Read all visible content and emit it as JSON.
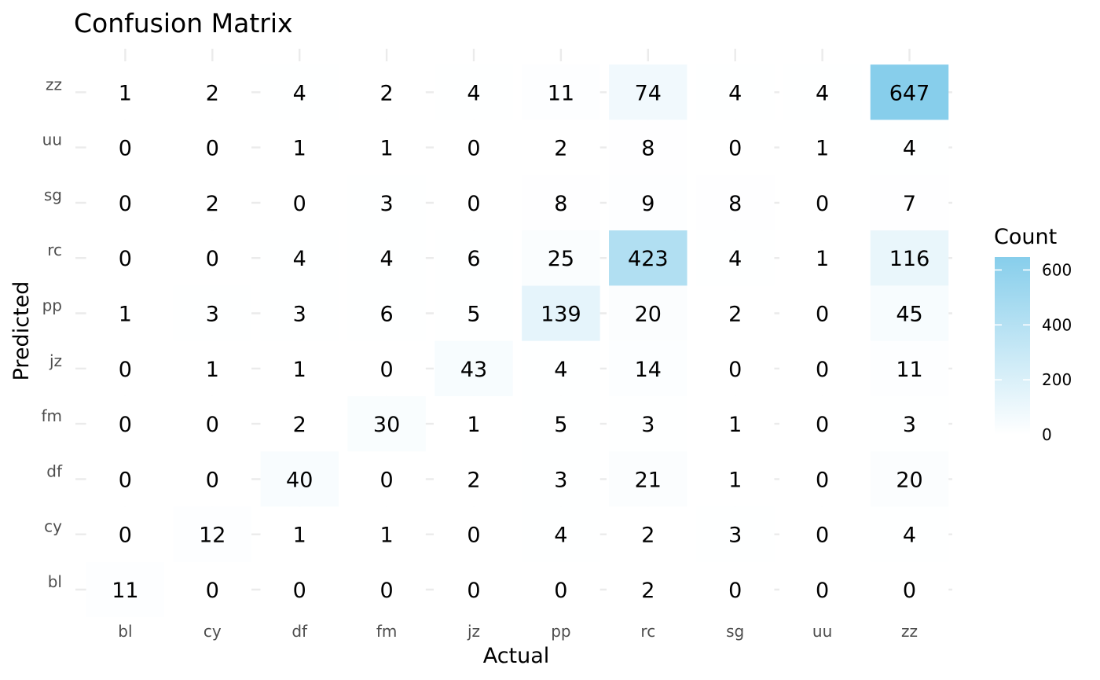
{
  "chart_data": {
    "type": "heatmap",
    "title": "Confusion Matrix",
    "xlabel": "Actual",
    "ylabel": "Predicted",
    "x_categories": [
      "bl",
      "cy",
      "df",
      "fm",
      "jz",
      "pp",
      "rc",
      "sg",
      "uu",
      "zz"
    ],
    "y_categories": [
      "bl",
      "cy",
      "df",
      "fm",
      "jz",
      "pp",
      "rc",
      "sg",
      "uu",
      "zz"
    ],
    "values": [
      [
        11,
        0,
        0,
        0,
        0,
        0,
        2,
        0,
        0,
        0
      ],
      [
        0,
        12,
        1,
        1,
        0,
        4,
        2,
        3,
        0,
        4
      ],
      [
        0,
        0,
        40,
        0,
        2,
        3,
        21,
        1,
        0,
        20
      ],
      [
        0,
        0,
        2,
        30,
        1,
        5,
        3,
        1,
        0,
        3
      ],
      [
        0,
        1,
        1,
        0,
        43,
        4,
        14,
        0,
        0,
        11
      ],
      [
        1,
        3,
        3,
        6,
        5,
        139,
        20,
        2,
        0,
        45
      ],
      [
        0,
        0,
        4,
        4,
        6,
        25,
        423,
        4,
        1,
        116
      ],
      [
        0,
        2,
        0,
        3,
        0,
        8,
        9,
        8,
        0,
        7
      ],
      [
        0,
        0,
        1,
        1,
        0,
        2,
        8,
        0,
        1,
        4
      ],
      [
        1,
        2,
        4,
        2,
        4,
        11,
        74,
        4,
        4,
        647
      ]
    ],
    "values_orientation": "rows are Predicted categories in y_categories order, columns are Actual categories in x_categories order",
    "color_low": "#ffffff",
    "color_high": "#87ceeb",
    "legend": {
      "title": "Count",
      "position": "right",
      "ticks": [
        0,
        200,
        400,
        600
      ],
      "range": [
        0,
        647
      ]
    },
    "grid": true
  }
}
